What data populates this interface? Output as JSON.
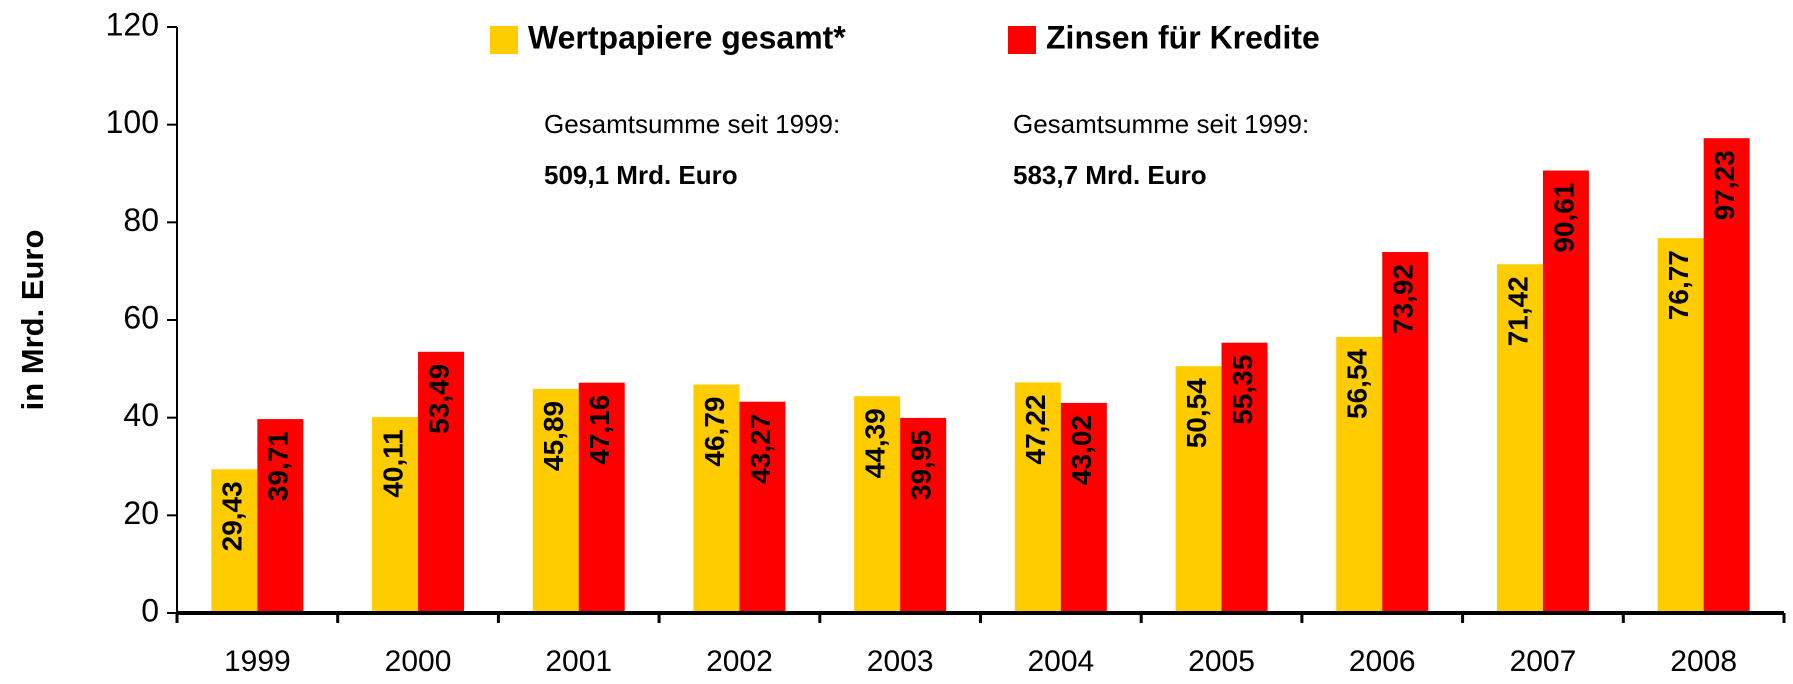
{
  "chart_data": {
    "type": "bar",
    "y_label": "in Mrd. Euro",
    "categories": [
      "1999",
      "2000",
      "2001",
      "2002",
      "2003",
      "2004",
      "2005",
      "2006",
      "2007",
      "2008"
    ],
    "series": [
      {
        "name": "Wertpapiere gesamt*",
        "color": "#ffcc00",
        "values": [
          29.43,
          40.11,
          45.89,
          46.79,
          44.39,
          47.22,
          50.54,
          56.54,
          71.42,
          76.77
        ],
        "value_labels": [
          "29,43",
          "40,11",
          "45,89",
          "46,79",
          "44,39",
          "47,22",
          "50,54",
          "56,54",
          "71,42",
          "76,77"
        ]
      },
      {
        "name": "Zinsen für Kredite",
        "color": "#ff0000",
        "values": [
          39.71,
          53.49,
          47.16,
          43.27,
          39.95,
          43.02,
          55.35,
          73.92,
          90.61,
          97.23
        ],
        "value_labels": [
          "39,71",
          "53,49",
          "47,16",
          "43,27",
          "39,95",
          "43,02",
          "55,35",
          "73,92",
          "90,61",
          "97,23"
        ]
      }
    ],
    "annotations": [
      {
        "text": "Gesamtsumme seit 1999:",
        "value": "509,1 Mrd. Euro"
      },
      {
        "text": "Gesamtsumme seit 1999:",
        "value": "583,7 Mrd. Euro"
      }
    ],
    "ylim": [
      0,
      120
    ],
    "yticks": [
      0,
      20,
      40,
      60,
      80,
      100,
      120
    ],
    "legend": "top"
  }
}
